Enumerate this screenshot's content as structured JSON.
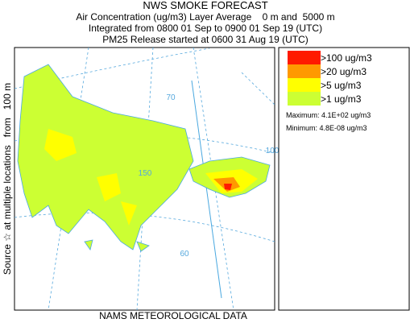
{
  "header": {
    "title": "NWS SMOKE FORECAST",
    "lines": [
      "Air Concentration (ug/m3) Layer Average    0 m and  5000 m",
      "Integrated from 0800 01 Sep to 0900 01 Sep 19 (UTC)",
      "PM25 Release started at 0600 31 Aug 19 (UTC)"
    ]
  },
  "side_label": "Source ☆ at multiple locations   from   100 m",
  "footer": "NAMS METEOROLOGICAL DATA",
  "legend": {
    "items": [
      {
        "label": ">100 ug/m3",
        "color": "#ff1a00"
      },
      {
        "label": ">20 ug/m3",
        "color": "#ff9900"
      },
      {
        "label": ">5 ug/m3",
        "color": "#ffff00"
      },
      {
        "label": ">1 ug/m3",
        "color": "#ccff33"
      }
    ],
    "maximum": "Maximum: 4.1E+02 ug/m3",
    "minimum": "Minimum: 4.8E-08 ug/m3"
  },
  "map": {
    "graticule_labels": [
      "70",
      "150",
      "100",
      "60"
    ]
  }
}
